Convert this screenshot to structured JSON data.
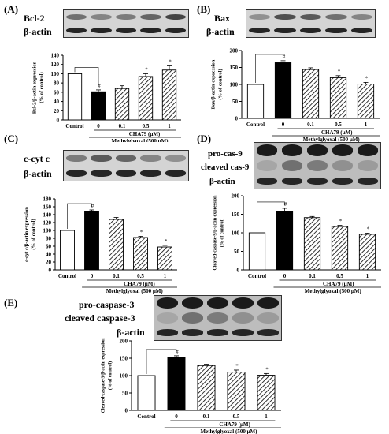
{
  "panels": [
    {
      "id": "A",
      "label": "(A)",
      "blot_rows": [
        {
          "label": "Bcl-2",
          "intensity": [
            0.55,
            0.45,
            0.5,
            0.6,
            0.75
          ]
        },
        {
          "label": "β-actin",
          "intensity": [
            0.9,
            0.9,
            0.9,
            0.9,
            0.9
          ]
        }
      ]
    },
    {
      "id": "B",
      "label": "(B)",
      "blot_rows": [
        {
          "label": "Bax",
          "intensity": [
            0.4,
            0.7,
            0.65,
            0.55,
            0.45
          ]
        },
        {
          "label": "β-actin",
          "intensity": [
            0.9,
            0.9,
            0.9,
            0.9,
            0.9
          ]
        }
      ]
    },
    {
      "id": "C",
      "label": "(C)",
      "blot_rows": [
        {
          "label": "c-cyt c",
          "intensity": [
            0.5,
            0.65,
            0.6,
            0.45,
            0.4
          ]
        },
        {
          "label": "β-actin",
          "intensity": [
            0.9,
            0.9,
            0.9,
            0.9,
            0.9
          ]
        }
      ]
    },
    {
      "id": "D",
      "label": "(D)",
      "blot_rows": [
        {
          "label": "pro-cas-9",
          "intensity": [
            0.95,
            0.95,
            0.95,
            0.95,
            0.95
          ],
          "dark": true
        },
        {
          "label": "cleaved cas-9",
          "intensity": [
            0.3,
            0.55,
            0.5,
            0.4,
            0.35
          ],
          "dark": true
        },
        {
          "label": "β-actin",
          "intensity": [
            0.9,
            0.9,
            0.9,
            0.9,
            0.9
          ]
        }
      ]
    },
    {
      "id": "E",
      "label": "(E)",
      "blot_rows": [
        {
          "label": "pro-caspase-3",
          "intensity": [
            0.95,
            0.95,
            0.95,
            0.95,
            0.95
          ],
          "dark": true
        },
        {
          "label": "cleaved caspase-3",
          "intensity": [
            0.3,
            0.55,
            0.5,
            0.4,
            0.35
          ],
          "dark": true
        },
        {
          "label": "β-actin",
          "intensity": [
            0.9,
            0.9,
            0.9,
            0.9,
            0.9
          ]
        }
      ]
    }
  ],
  "chart_data": [
    {
      "panel": "A",
      "type": "bar",
      "categories": [
        "Control",
        "0",
        "0.1",
        "0.5",
        "1"
      ],
      "values": [
        100,
        61,
        68,
        94,
        108
      ],
      "errors": [
        0,
        4,
        6,
        6,
        9
      ],
      "annotations": [
        "",
        "#",
        "",
        "*",
        "*"
      ],
      "ylabel": "Bcl-2/β-actin expression\n(% of control)",
      "xlabel": "CHA79 (μM)",
      "xlabel2": "Methylglyoxal (500 μM)",
      "ylim": [
        0,
        140
      ],
      "ytick_step": 20,
      "fills": [
        "white",
        "black",
        "hatch",
        "hatch",
        "hatch"
      ]
    },
    {
      "panel": "B",
      "type": "bar",
      "categories": [
        "Control",
        "0",
        "0.1",
        "0.5",
        "1"
      ],
      "values": [
        100,
        164,
        144,
        120,
        101
      ],
      "errors": [
        0,
        6,
        5,
        6,
        5
      ],
      "annotations": [
        "",
        "#",
        "",
        "*",
        "*"
      ],
      "ylabel": "Bax/β-actin expression\n(% of control)",
      "xlabel": "CHA79 (μM)",
      "xlabel2": "Methylglyoxal (500 μM)",
      "ylim": [
        0,
        200
      ],
      "ytick_step": 50,
      "fills": [
        "white",
        "black",
        "hatch",
        "hatch",
        "hatch"
      ]
    },
    {
      "panel": "C",
      "type": "bar",
      "categories": [
        "Control",
        "0",
        "0.1",
        "0.5",
        "1"
      ],
      "values": [
        100,
        148,
        128,
        82,
        58
      ],
      "errors": [
        0,
        4,
        5,
        3,
        4
      ],
      "annotations": [
        "",
        "#",
        "",
        "*",
        "*"
      ],
      "ylabel": "c-cyt c/β-actin expression\n(% of control)",
      "xlabel": "CHA79 (μM)",
      "xlabel2": "Methylglyoxal (500 μM)",
      "ylim": [
        0,
        180
      ],
      "ytick_step": 20,
      "fills": [
        "white",
        "black",
        "hatch",
        "hatch",
        "hatch"
      ]
    },
    {
      "panel": "D",
      "type": "bar",
      "categories": [
        "Control",
        "0",
        "0.1",
        "0.5",
        "1"
      ],
      "values": [
        100,
        158,
        141,
        117,
        96
      ],
      "errors": [
        0,
        8,
        3,
        3,
        3
      ],
      "annotations": [
        "",
        "#",
        "",
        "*",
        "*"
      ],
      "ylabel": "Cleaved-caspase-9/β-actin expression\n(% of control)",
      "xlabel": "CHA79 (μM)",
      "xlabel2": "Methylglyoxal (500 μM)",
      "ylim": [
        0,
        200
      ],
      "ytick_step": 50,
      "fills": [
        "white",
        "black",
        "hatch",
        "hatch",
        "hatch"
      ]
    },
    {
      "panel": "E",
      "type": "bar",
      "categories": [
        "Control",
        "0",
        "0.1",
        "0.5",
        "1"
      ],
      "values": [
        100,
        152,
        129,
        110,
        101
      ],
      "errors": [
        0,
        5,
        4,
        6,
        5
      ],
      "annotations": [
        "",
        "#",
        "",
        "*",
        "*"
      ],
      "ylabel": "Cleaved-caspase-3/β-actin expression\n(% of control)",
      "xlabel": "CHA79 (μM)",
      "xlabel2": "Methylglyoxal (500 μM)",
      "ylim": [
        0,
        200
      ],
      "ytick_step": 50,
      "fills": [
        "white",
        "black",
        "hatch",
        "hatch",
        "hatch"
      ]
    }
  ]
}
